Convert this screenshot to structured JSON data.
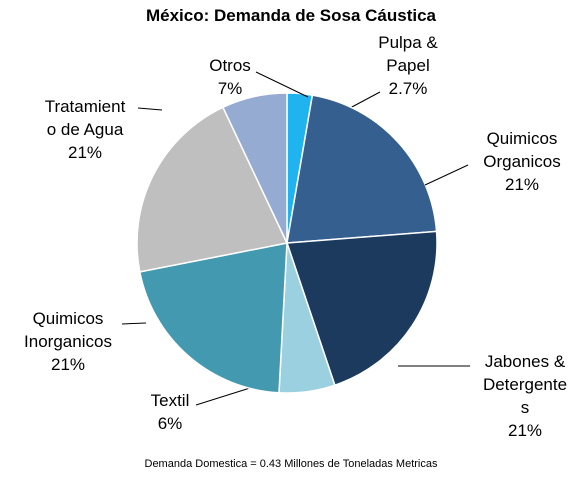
{
  "chart_data": {
    "type": "pie",
    "title": "México: Demanda de Sosa Cáustica",
    "note": "Demanda Domestica = 0.43 Millones  de Toneladas Metricas",
    "categories": [
      "Pulpa &\nPapel",
      "Quimicos\nOrganicos",
      "Jabones &\nDetergente\ns",
      "Textil",
      "Quimicos\nInorganicos",
      "Tratamient\no de Agua",
      "Otros"
    ],
    "values": [
      2.7,
      21,
      21,
      6,
      21,
      21,
      7
    ],
    "value_labels": [
      "2.7%",
      "21%",
      "21%",
      "6%",
      "21%",
      "21%",
      "7%"
    ],
    "colors": [
      "#1fb4f0",
      "#355f8f",
      "#1b3a5e",
      "#9bd0e0",
      "#4399b0",
      "#bfbfbf",
      "#95abd2"
    ]
  }
}
